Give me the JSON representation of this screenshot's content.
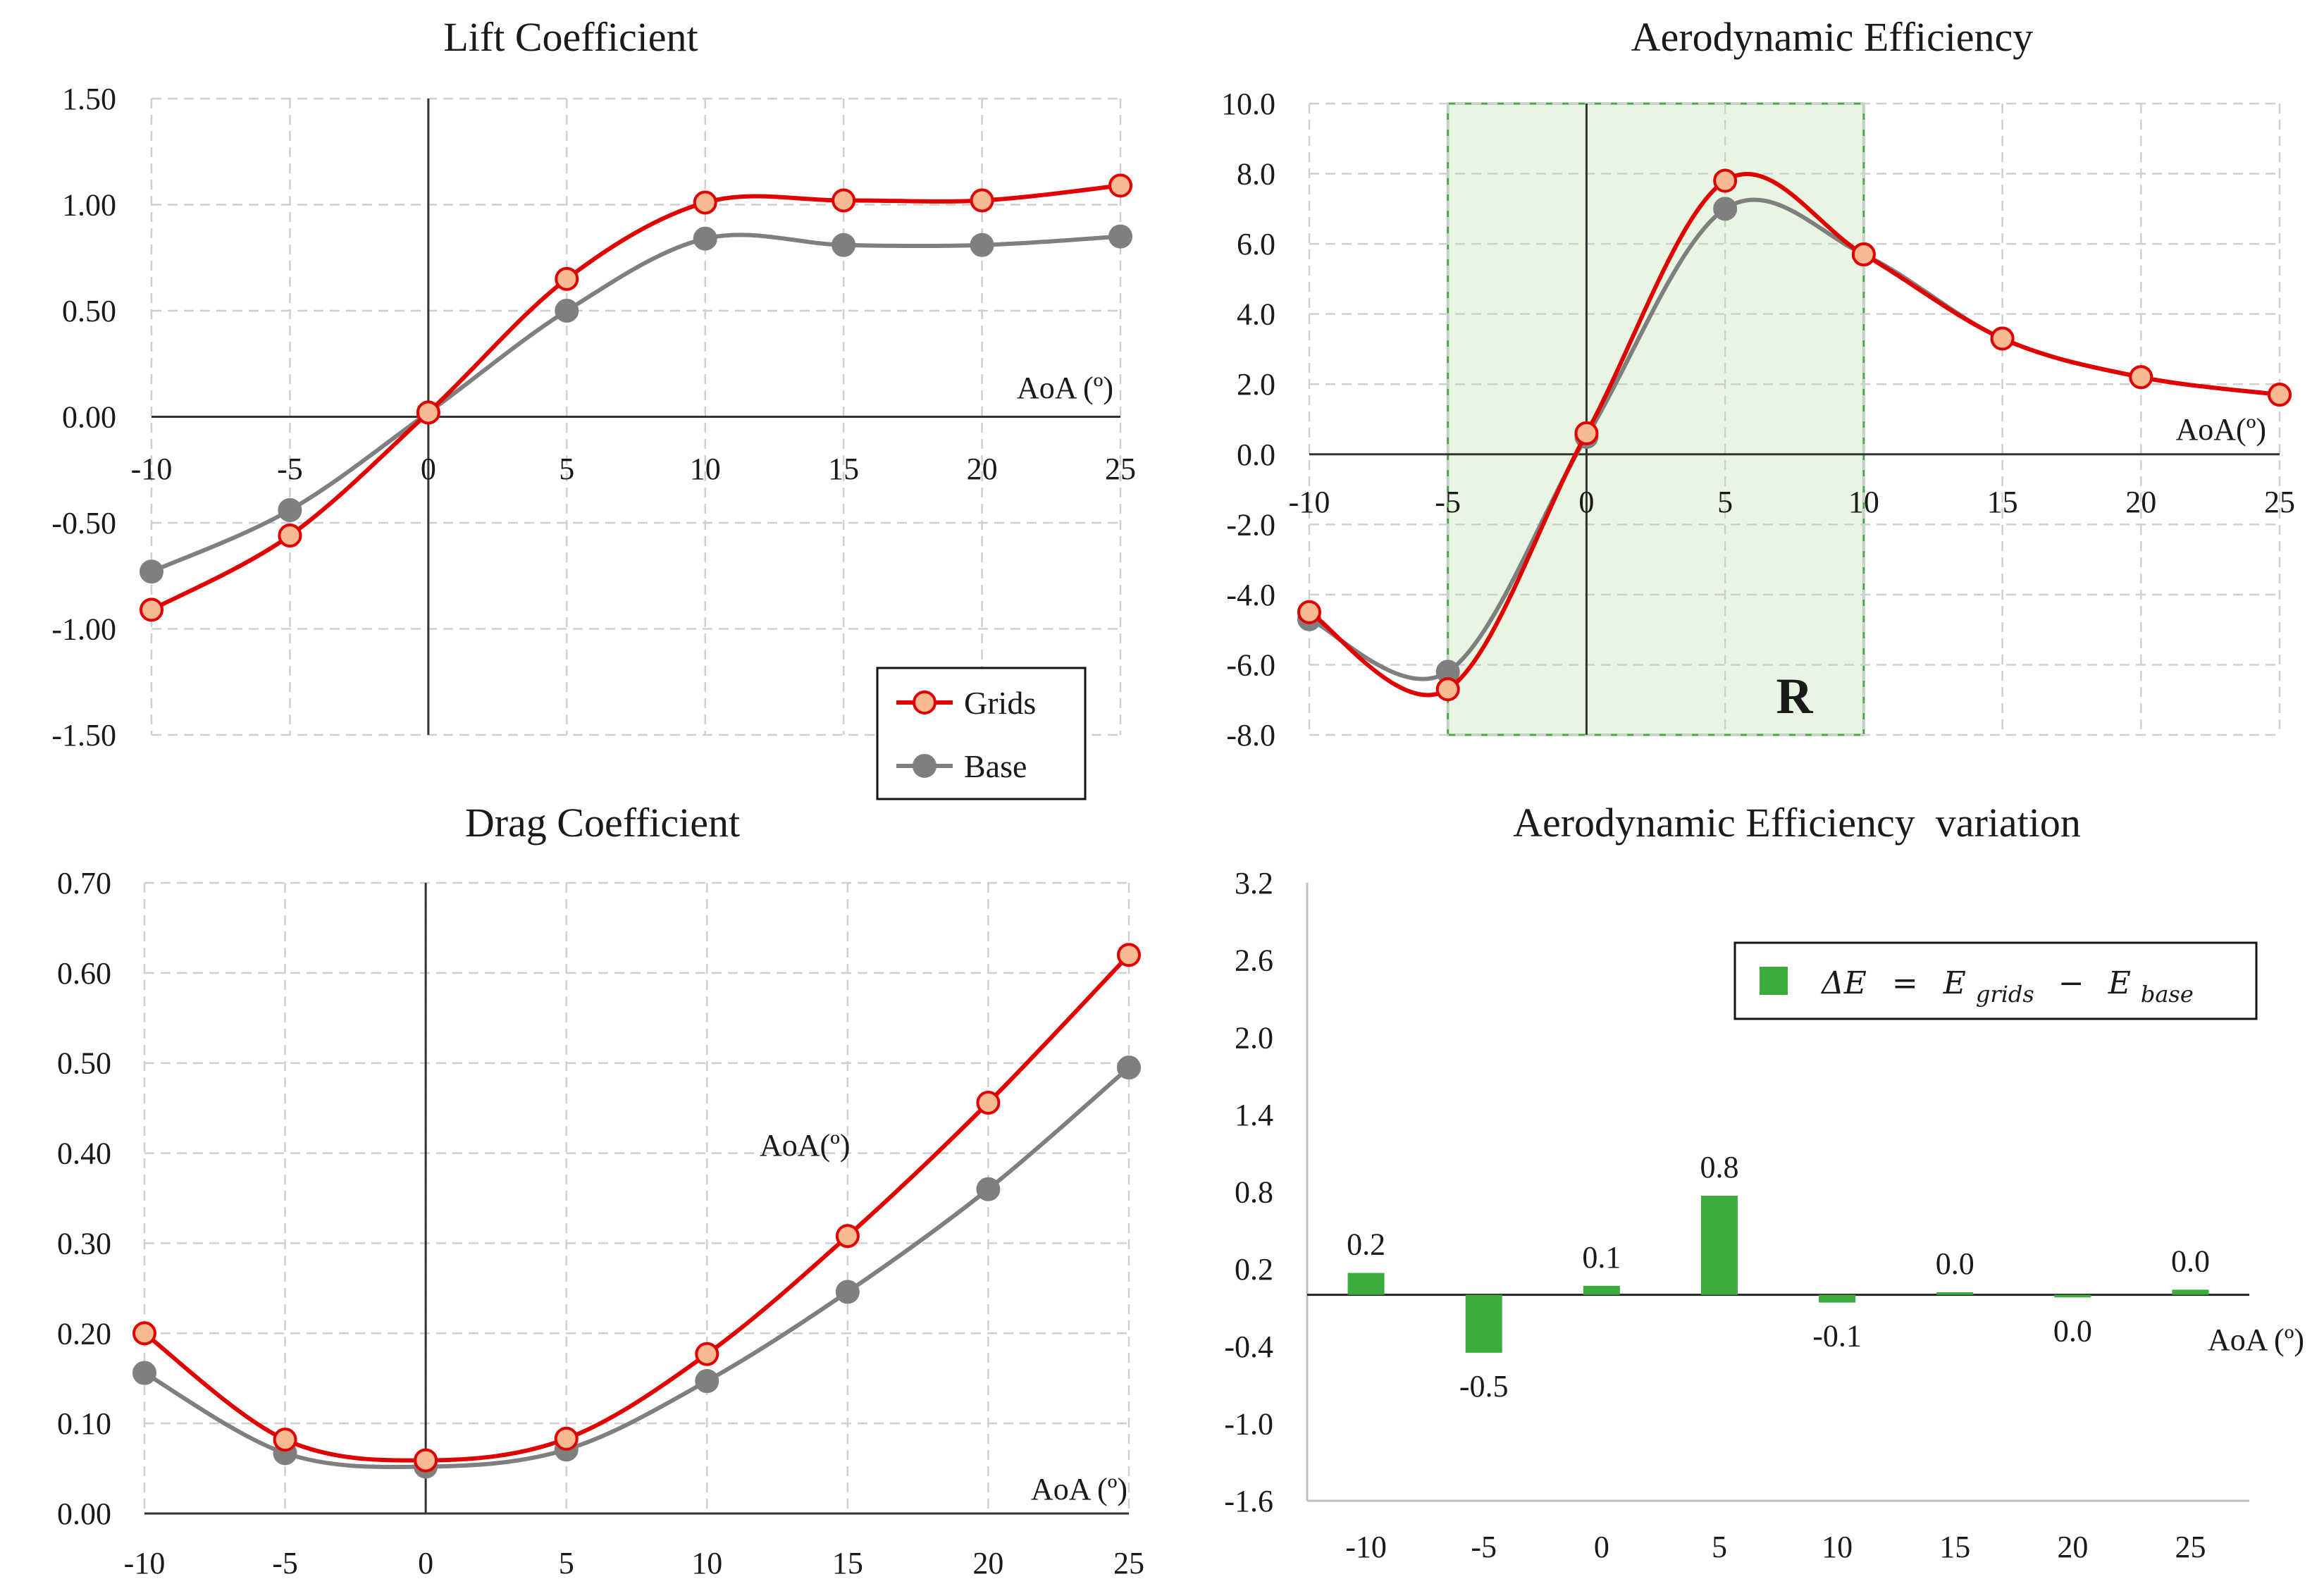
{
  "chart_data": [
    {
      "id": "lift",
      "type": "line",
      "title": "Lift Coefficient",
      "xlabel": "AoA (º)",
      "ylabel": "",
      "x": [
        -10,
        -5,
        0,
        5,
        10,
        15,
        20,
        25
      ],
      "xlim": [
        -10,
        25
      ],
      "ylim": [
        -1.5,
        1.5
      ],
      "yticks": [
        -1.5,
        -1.0,
        -0.5,
        0.0,
        0.5,
        1.0,
        1.5
      ],
      "ytick_labels": [
        "-1.50",
        "-1.00",
        "-0.50",
        "0.00",
        "0.50",
        "1.00",
        "1.50"
      ],
      "xticks": [
        -10,
        -5,
        0,
        5,
        10,
        15,
        20,
        25
      ],
      "xtick_labels": [
        "-10",
        "-5",
        "0",
        "5",
        "10",
        "15",
        "20",
        "25"
      ],
      "grid": true,
      "series": [
        {
          "name": "Grids",
          "values": [
            -0.91,
            -0.56,
            0.02,
            0.65,
            1.01,
            1.02,
            1.02,
            1.09
          ]
        },
        {
          "name": "Base",
          "values": [
            -0.73,
            -0.44,
            0.02,
            0.5,
            0.84,
            0.81,
            0.81,
            0.85
          ]
        }
      ],
      "legend": {
        "position": "bottom-right",
        "entries": [
          "Grids",
          "Base"
        ]
      }
    },
    {
      "id": "efficiency",
      "type": "line",
      "title": "Aerodynamic Efficiency",
      "xlabel": "AoA(º)",
      "ylabel": "",
      "x": [
        -10,
        -5,
        0,
        5,
        10,
        15,
        20,
        25
      ],
      "xlim": [
        -10,
        25
      ],
      "ylim": [
        -8,
        10
      ],
      "yticks": [
        -8,
        -6,
        -4,
        -2,
        0,
        2,
        4,
        6,
        8,
        10
      ],
      "ytick_labels": [
        "-8.0",
        "-6.0",
        "-4.0",
        "-2.0",
        "0.0",
        "2.0",
        "4.0",
        "6.0",
        "8.0",
        "10.0"
      ],
      "xticks": [
        -10,
        -5,
        0,
        5,
        10,
        15,
        20,
        25
      ],
      "xtick_labels": [
        "-10",
        "-5",
        "0",
        "5",
        "10",
        "15",
        "20",
        "25"
      ],
      "grid": true,
      "series": [
        {
          "name": "Grids",
          "values": [
            -4.5,
            -6.7,
            0.6,
            7.8,
            5.7,
            3.3,
            2.2,
            1.7
          ]
        },
        {
          "name": "Base",
          "values": [
            -4.7,
            -6.2,
            0.5,
            7.0,
            5.7,
            3.3,
            2.2,
            1.7
          ]
        }
      ],
      "annotations": [
        {
          "type": "shaded-region",
          "x_range": [
            -5,
            10
          ],
          "label": "R"
        }
      ]
    },
    {
      "id": "drag",
      "type": "line",
      "title": "Drag Coefficient",
      "xlabel": "AoA (º)",
      "extra_label": "AoA(º)",
      "ylabel": "",
      "x": [
        -10,
        -5,
        0,
        5,
        10,
        15,
        20,
        25
      ],
      "xlim": [
        -10,
        25
      ],
      "ylim": [
        0,
        0.7
      ],
      "yticks": [
        0,
        0.1,
        0.2,
        0.3,
        0.4,
        0.5,
        0.6,
        0.7
      ],
      "ytick_labels": [
        "0.00",
        "0.10",
        "0.20",
        "0.30",
        "0.40",
        "0.50",
        "0.60",
        "0.70"
      ],
      "xticks": [
        -10,
        -5,
        0,
        5,
        10,
        15,
        20,
        25
      ],
      "xtick_labels": [
        "-10",
        "-5",
        "0",
        "5",
        "10",
        "15",
        "20",
        "25"
      ],
      "grid": true,
      "series": [
        {
          "name": "Grids",
          "values": [
            0.2,
            0.082,
            0.059,
            0.083,
            0.177,
            0.308,
            0.456,
            0.62
          ]
        },
        {
          "name": "Base",
          "values": [
            0.156,
            0.067,
            0.052,
            0.071,
            0.147,
            0.246,
            0.36,
            0.495
          ]
        }
      ]
    },
    {
      "id": "variation",
      "type": "bar",
      "title": "Aerodynamic Efficiency  variation",
      "xlabel": "AoA (º)",
      "ylabel": "",
      "categories": [
        "-10",
        "-5",
        "0",
        "5",
        "10",
        "15",
        "20",
        "25"
      ],
      "values": [
        0.17,
        -0.45,
        0.07,
        0.77,
        -0.06,
        0.02,
        -0.02,
        0.04
      ],
      "data_labels": [
        "0.2",
        "-0.5",
        "0.1",
        "0.8",
        "-0.1",
        "0.0",
        "0.0",
        "0.0"
      ],
      "ylim": [
        -1.6,
        3.2
      ],
      "yticks": [
        -1.6,
        -1.0,
        -0.4,
        0.2,
        0.8,
        1.4,
        2.0,
        2.6,
        3.2
      ],
      "ytick_labels": [
        "-1.6",
        "-1.0",
        "-0.4",
        "0.2",
        "0.8",
        "1.4",
        "2.0",
        "2.6",
        "3.2"
      ],
      "grid": false,
      "legend": {
        "position": "top-right",
        "entry": "ΔE = E_grids − E_base"
      }
    }
  ],
  "legend_lift": {
    "grids": "Grids",
    "base": "Base"
  },
  "variation_legend": {
    "delta": "ΔE",
    "eq": "=",
    "e1": "E",
    "sub1": "grids",
    "minus": "−",
    "e2": "E",
    "sub2": "base"
  },
  "colors": {
    "grids_line": "#e00000",
    "grids_marker_fill": "#f9b993",
    "base_line": "#7f7f7f",
    "base_marker_fill": "#7f7f7f",
    "grid": "#cfcfcf",
    "axis": "#333333",
    "bar": "#3cac3c",
    "region_fill": "#e9f5e3",
    "region_border": "#47a647"
  }
}
